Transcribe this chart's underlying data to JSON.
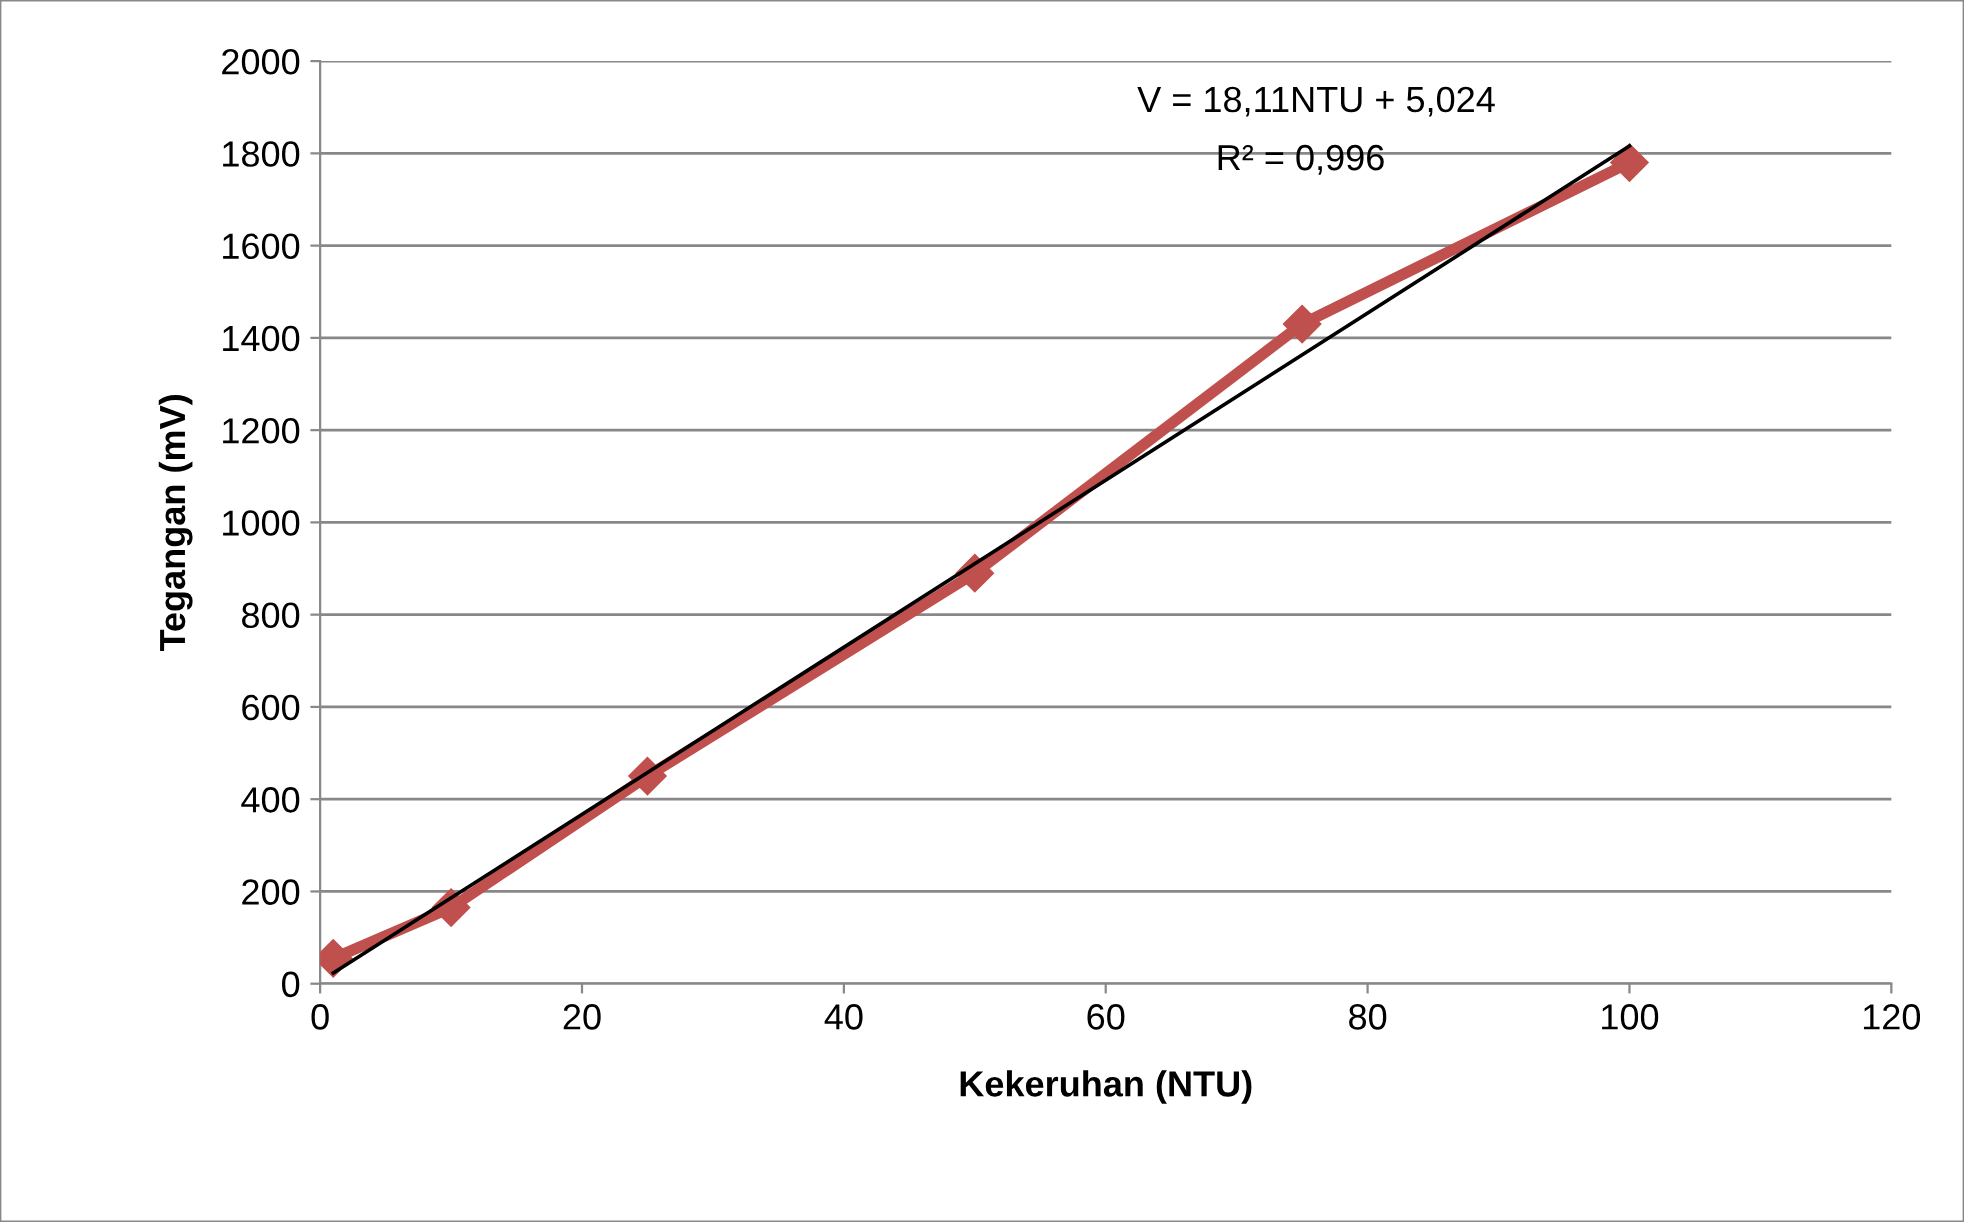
{
  "chart_data": {
    "type": "line",
    "xlabel": "Kekeruhan (NTU)",
    "ylabel": "Tegangan (mV)",
    "series": [
      {
        "color": "#c0504d",
        "marker": "diamond",
        "x": [
          1,
          10,
          25,
          50,
          75,
          100
        ],
        "values": [
          55,
          165,
          450,
          890,
          1430,
          1780
        ]
      },
      {
        "color": "#000000",
        "marker": "none",
        "x": [
          1,
          100
        ],
        "values": [
          23,
          1816
        ]
      }
    ],
    "annotations": [
      "V = 18,11NTU + 5,024",
      "R² = 0,996"
    ],
    "xlim": [
      0,
      120
    ],
    "xticks": [
      0,
      20,
      40,
      60,
      80,
      100,
      120
    ],
    "ylim": [
      0,
      2000
    ],
    "yticks": [
      0,
      200,
      400,
      600,
      800,
      1000,
      1200,
      1400,
      1600,
      1800,
      2000
    ],
    "grid": "y",
    "legend": false
  }
}
